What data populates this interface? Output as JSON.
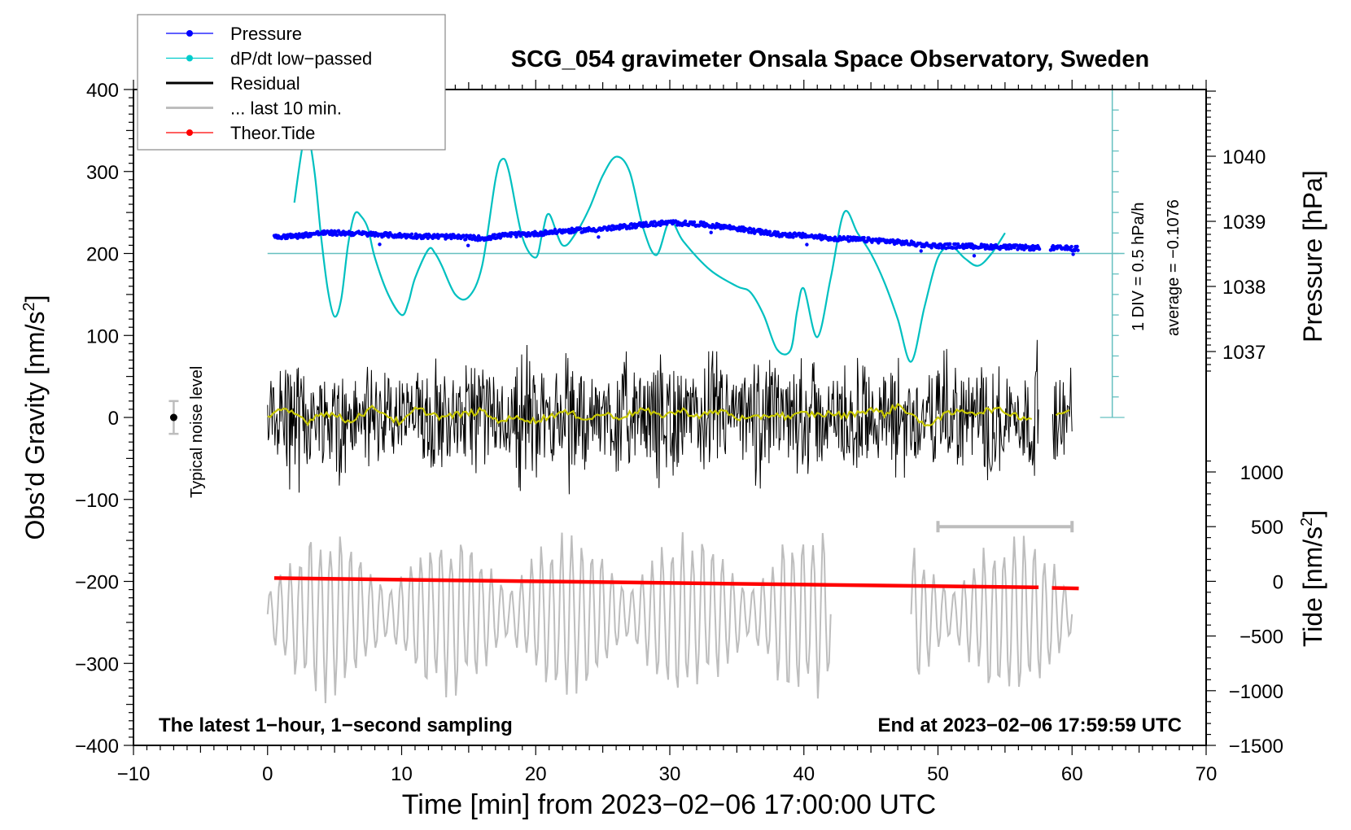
{
  "chart_data": {
    "type": "line",
    "title": "SCG_054 gravimeter Onsala Space Observatory, Sweden",
    "xlabel": "Time [min] from 2023−02−06 17:00:00 UTC",
    "ylabel_left": "Obs’d Gravity [nm/s²]",
    "ylabel_left_main": "Obs’d Gravity [nm/s",
    "ylabel_left_sup": "2",
    "ylabel_left_end": "]",
    "ylabel_right_pressure": "Pressure [hPa]",
    "ylabel_right_tide_main": "Tide [nm/s",
    "ylabel_right_tide_sup": "2",
    "ylabel_right_tide_end": "]",
    "xlim": [
      -10,
      70
    ],
    "ylim_left": [
      -400,
      400
    ],
    "ylim_pressure": [
      1036.0,
      1041.0
    ],
    "ylim_tide": [
      -1500,
      1500
    ],
    "grid": false,
    "legend_position": "top-left",
    "x_ticks": [
      "−10",
      "0",
      "10",
      "20",
      "30",
      "40",
      "50",
      "60",
      "70"
    ],
    "x_tick_values": [
      -10,
      0,
      10,
      20,
      30,
      40,
      50,
      60,
      70
    ],
    "y_left_ticks": [
      "400",
      "300",
      "200",
      "100",
      "0",
      "−100",
      "−200",
      "−300",
      "−400"
    ],
    "y_left_tick_values": [
      400,
      300,
      200,
      100,
      0,
      -100,
      -200,
      -300,
      -400
    ],
    "y_pressure_ticks": [
      "1040",
      "1039",
      "1038",
      "1037"
    ],
    "y_pressure_tick_values": [
      1040,
      1039,
      1038,
      1037
    ],
    "y_tide_ticks": [
      "1000",
      "500",
      "0",
      "−500",
      "−1000",
      "−1500"
    ],
    "y_tide_tick_values": [
      1000,
      500,
      0,
      -500,
      -1000,
      -1500
    ],
    "legend": [
      {
        "label": "Pressure",
        "color": "#0000ff",
        "marker": true,
        "line": "thin"
      },
      {
        "label": "dP/dt low−passed",
        "color": "#00cccc",
        "marker": true,
        "line": "thin"
      },
      {
        "label": "Residual",
        "color": "#000000",
        "marker": false,
        "line": "thick"
      },
      {
        "label": "... last 10 min.",
        "color": "#bdbdbd",
        "marker": false,
        "line": "thick"
      },
      {
        "label": "Theor.Tide",
        "color": "#ff0000",
        "marker": true,
        "line": "thin"
      }
    ],
    "annotations": {
      "bottom_left": "The latest 1−hour, 1−second sampling",
      "bottom_right": "End at 2023−02−06 17:59:59 UTC",
      "noise_label": "Typical noise level",
      "div_label": "1 DIV = 0.5 hPa/h",
      "average_label": "average = −0.1076"
    },
    "noise_level": {
      "x": -7,
      "center": 0,
      "half_range": 20
    },
    "last10_bar": {
      "x_start": 50,
      "x_end": 60,
      "y_tide": 500
    },
    "dpdt_axis": {
      "x": 63,
      "zero_left_units": 200,
      "div_hpa_per_h": 0.5,
      "div_left_units": 25,
      "n_div": 8,
      "average": -0.1076
    },
    "series": [
      {
        "name": "Pressure",
        "color": "#0000ff",
        "axis": "pressure",
        "x": [
          0.5,
          2,
          4,
          6,
          8,
          10,
          12,
          14,
          16,
          18,
          20,
          22,
          24,
          26,
          28,
          30,
          32,
          34,
          36,
          38,
          40,
          42,
          44,
          46,
          48,
          50,
          52,
          54,
          56,
          57.5,
          58.5,
          60.5
        ],
        "y": [
          1038.77,
          1038.77,
          1038.82,
          1038.82,
          1038.8,
          1038.78,
          1038.77,
          1038.76,
          1038.74,
          1038.79,
          1038.81,
          1038.85,
          1038.87,
          1038.9,
          1038.95,
          1038.98,
          1038.96,
          1038.92,
          1038.86,
          1038.8,
          1038.78,
          1038.74,
          1038.72,
          1038.7,
          1038.66,
          1038.62,
          1038.62,
          1038.61,
          1038.6,
          1038.59,
          1038.59,
          1038.58
        ]
      },
      {
        "name": "dP/dt low-passed",
        "color": "#00c0c0",
        "axis": "left",
        "x": [
          2,
          2.6,
          3.0,
          3.5,
          4.0,
          4.5,
          5.0,
          5.5,
          6.0,
          6.5,
          7.0,
          7.5,
          8.0,
          9.0,
          10.0,
          10.5,
          11.0,
          12.0,
          12.5,
          13.0,
          14.0,
          15.0,
          16.0,
          17.0,
          17.5,
          18.0,
          19.0,
          20.0,
          20.5,
          21.0,
          22.0,
          23.0,
          24.0,
          25.0,
          26.0,
          27.0,
          28.0,
          29.0,
          30.0,
          31.0,
          33.0,
          35.0,
          36.0,
          37.0,
          38.0,
          39.0,
          39.5,
          40.0,
          41.0,
          42.0,
          43.0,
          44.0,
          45.0,
          46.0,
          47.0,
          48.0,
          49.0,
          50.0,
          51.0,
          52.0,
          53.0,
          54.0,
          55.0
        ],
        "y": [
          262,
          330,
          345,
          300,
          220,
          155,
          123,
          145,
          210,
          248,
          245,
          230,
          195,
          150,
          125,
          140,
          170,
          205,
          200,
          185,
          150,
          147,
          185,
          290,
          315,
          300,
          220,
          195,
          225,
          248,
          210,
          225,
          255,
          295,
          318,
          300,
          232,
          198,
          240,
          215,
          180,
          160,
          153,
          125,
          83,
          82,
          130,
          157,
          98,
          170,
          250,
          225,
          200,
          165,
          120,
          68,
          135,
          195,
          208,
          194,
          185,
          200,
          225
        ]
      },
      {
        "name": "Residual",
        "color": "#000000",
        "axis": "left",
        "summary": {
          "x_start": 0,
          "x_end": 60,
          "gap": [
            57.5,
            58.5
          ],
          "mean": 0,
          "typical_range": [
            -80,
            100
          ],
          "max": 130,
          "min": -165
        }
      },
      {
        "name": "Residual smoothed",
        "color": "#c8c800",
        "axis": "left",
        "x": [
          0,
          1,
          2,
          3,
          4,
          5,
          6,
          7,
          8,
          9,
          10,
          11,
          12,
          13,
          14,
          15,
          16,
          17,
          18,
          19,
          20,
          21,
          22,
          23,
          24,
          25,
          26,
          27,
          28,
          29,
          30,
          31,
          32,
          33,
          34,
          35,
          36,
          37,
          38,
          39,
          40,
          41,
          42,
          43,
          44,
          45,
          46,
          47,
          48,
          49,
          50,
          51,
          52,
          53,
          54,
          55,
          56,
          57,
          59,
          60
        ],
        "y": [
          0,
          8,
          5,
          -5,
          6,
          3,
          -5,
          4,
          12,
          2,
          -8,
          10,
          6,
          0,
          3,
          5,
          8,
          -3,
          -2,
          0,
          -5,
          2,
          6,
          3,
          -2,
          5,
          0,
          4,
          10,
          2,
          5,
          8,
          2,
          5,
          8,
          0,
          -3,
          2,
          4,
          0,
          5,
          3,
          5,
          2,
          6,
          10,
          4,
          15,
          5,
          -12,
          0,
          5,
          8,
          6,
          10,
          7,
          2,
          -2,
          5,
          10
        ]
      },
      {
        "name": "... last 10 min.",
        "color": "#bdbdbd",
        "axis": "left",
        "summary": {
          "segments": [
            [
              0,
              42
            ],
            [
              48,
              60
            ]
          ],
          "center": -250,
          "amplitude_max": 110
        }
      },
      {
        "name": "Theor.Tide",
        "color": "#ff0000",
        "axis": "tide",
        "x": [
          0.5,
          10,
          20,
          30,
          40,
          50,
          57.5,
          58.5,
          60.5
        ],
        "y": [
          30,
          15,
          0,
          -15,
          -30,
          -45,
          -55,
          -60,
          -65
        ]
      }
    ]
  }
}
